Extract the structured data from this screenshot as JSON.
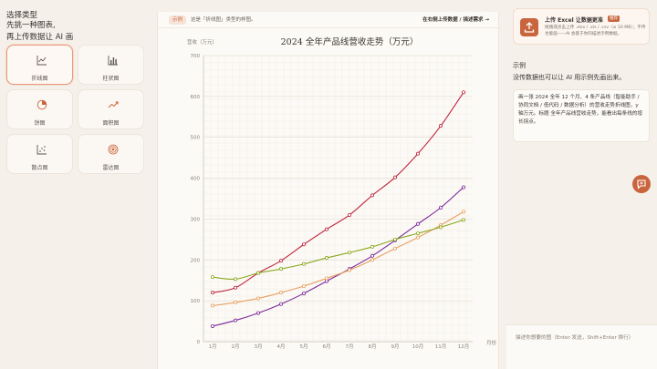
{
  "left": {
    "title": "选择类型",
    "subtitle_1": "先挑一种图表,",
    "subtitle_2": "再上传数据让 AI 画",
    "types": [
      {
        "label": "折线图",
        "icon": "line-chart-icon"
      },
      {
        "label": "柱状图",
        "icon": "bar-chart-icon"
      },
      {
        "label": "饼图",
        "icon": "pie-chart-icon"
      },
      {
        "label": "面积图",
        "icon": "area-chart-icon"
      },
      {
        "label": "散点图",
        "icon": "scatter-chart-icon"
      },
      {
        "label": "雷达图",
        "icon": "radar-chart-icon"
      }
    ],
    "active_index": 0
  },
  "center": {
    "pill": "示例",
    "topbar_text": "这是「折线图」类型的样图。",
    "topbar_link": "在右侧上传数据 / 描述需求 →"
  },
  "right": {
    "upload_title": "上传 Excel 让数据更准",
    "upload_badge": "推荐",
    "upload_desc": "拖拽或点击上传 .xlsx / .xls / .csv（≤ 10 MB）；不传也能画——AI 会基于你的描述示例数据。",
    "example_title": "示例",
    "example_sub": "没传数据也可以让 AI 用示例先画出来。",
    "example_text": "画一张 2024 全年 12 个月、4 条产品线（智能助手 / 协同文档 / 低代码 / 数据分析）的营收走势折线图，y 轴万元。标题 全年产品线营收走势，能看出每条线的增长拐点。",
    "input_placeholder": "描述你想要的图（Enter 发送，Shift+Enter 换行）"
  },
  "colors": {
    "accent": "#c9653e",
    "series": [
      "#c0263f",
      "#7a2a9a",
      "#e8a060",
      "#8aa81e"
    ]
  },
  "chart_data": {
    "type": "line",
    "title": "2024 全年产品线营收走势（万元）",
    "ylabel": "营收（万元）",
    "xlabel": "月份",
    "ylim": [
      0,
      700
    ],
    "yticks": [
      0,
      100,
      200,
      300,
      400,
      500,
      600,
      700
    ],
    "categories": [
      "1月",
      "2月",
      "3月",
      "4月",
      "5月",
      "6月",
      "7月",
      "8月",
      "9月",
      "10月",
      "11月",
      "12月"
    ],
    "grid": true,
    "series": [
      {
        "values": [
          120,
          132,
          168,
          198,
          238,
          275,
          310,
          358,
          402,
          460,
          528,
          610
        ]
      },
      {
        "values": [
          38,
          52,
          70,
          92,
          118,
          148,
          178,
          210,
          248,
          288,
          328,
          378
        ]
      },
      {
        "values": [
          88,
          96,
          106,
          120,
          136,
          155,
          175,
          200,
          228,
          255,
          285,
          318
        ]
      },
      {
        "values": [
          158,
          153,
          168,
          178,
          190,
          205,
          218,
          232,
          250,
          265,
          280,
          298
        ]
      }
    ]
  }
}
